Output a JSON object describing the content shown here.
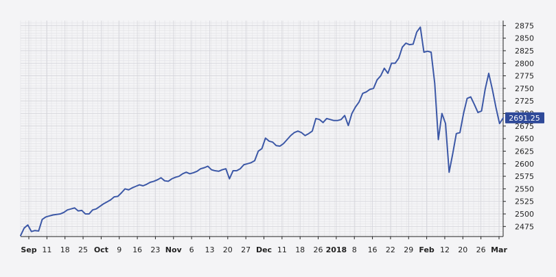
{
  "chart_data": {
    "type": "line",
    "title": "",
    "xlabel": "",
    "ylabel": "",
    "ylim": [
      2455,
      2885
    ],
    "y_ticks": [
      2475,
      2500,
      2525,
      2550,
      2575,
      2600,
      2625,
      2650,
      2675,
      2700,
      2725,
      2750,
      2775,
      2800,
      2825,
      2850,
      2875
    ],
    "x_tick_labels": [
      {
        "label": "Sep",
        "major": true
      },
      {
        "label": "11",
        "major": false
      },
      {
        "label": "18",
        "major": false
      },
      {
        "label": "25",
        "major": false
      },
      {
        "label": "Oct",
        "major": true
      },
      {
        "label": "9",
        "major": false
      },
      {
        "label": "16",
        "major": false
      },
      {
        "label": "23",
        "major": false
      },
      {
        "label": "Nov",
        "major": true
      },
      {
        "label": "6",
        "major": false
      },
      {
        "label": "13",
        "major": false
      },
      {
        "label": "20",
        "major": false
      },
      {
        "label": "27",
        "major": false
      },
      {
        "label": "Dec",
        "major": true
      },
      {
        "label": "11",
        "major": false
      },
      {
        "label": "18",
        "major": false
      },
      {
        "label": "26",
        "major": false
      },
      {
        "label": "2018",
        "major": true
      },
      {
        "label": "8",
        "major": false
      },
      {
        "label": "16",
        "major": false
      },
      {
        "label": "22",
        "major": false
      },
      {
        "label": "29",
        "major": false
      },
      {
        "label": "Feb",
        "major": true
      },
      {
        "label": "12",
        "major": false
      },
      {
        "label": "20",
        "major": false
      },
      {
        "label": "26",
        "major": false
      },
      {
        "label": "Mar",
        "major": true
      }
    ],
    "grid": true,
    "last_value_label": "2691.25",
    "line_color": "#3b57a6",
    "series": [
      {
        "values": [
          2457,
          2472,
          2478,
          2465,
          2467,
          2466,
          2489,
          2494,
          2496,
          2498,
          2499,
          2500,
          2503,
          2508,
          2510,
          2512,
          2506,
          2507,
          2500,
          2500,
          2508,
          2510,
          2515,
          2520,
          2524,
          2528,
          2534,
          2535,
          2542,
          2550,
          2548,
          2552,
          2555,
          2558,
          2556,
          2559,
          2563,
          2565,
          2568,
          2572,
          2566,
          2565,
          2570,
          2573,
          2575,
          2580,
          2583,
          2580,
          2582,
          2585,
          2590,
          2592,
          2595,
          2588,
          2586,
          2585,
          2588,
          2590,
          2570,
          2586,
          2586,
          2590,
          2598,
          2600,
          2602,
          2606,
          2625,
          2630,
          2651,
          2645,
          2643,
          2636,
          2635,
          2640,
          2648,
          2656,
          2662,
          2665,
          2662,
          2656,
          2660,
          2665,
          2690,
          2688,
          2682,
          2690,
          2688,
          2686,
          2686,
          2688,
          2696,
          2676,
          2700,
          2713,
          2723,
          2740,
          2743,
          2748,
          2750,
          2767,
          2775,
          2790,
          2780,
          2800,
          2800,
          2810,
          2832,
          2840,
          2837,
          2838,
          2862,
          2872,
          2822,
          2824,
          2822,
          2760,
          2648,
          2700,
          2680,
          2583,
          2620,
          2660,
          2662,
          2700,
          2730,
          2733,
          2718,
          2702,
          2705,
          2748,
          2780,
          2748,
          2712,
          2680,
          2691
        ]
      }
    ]
  }
}
